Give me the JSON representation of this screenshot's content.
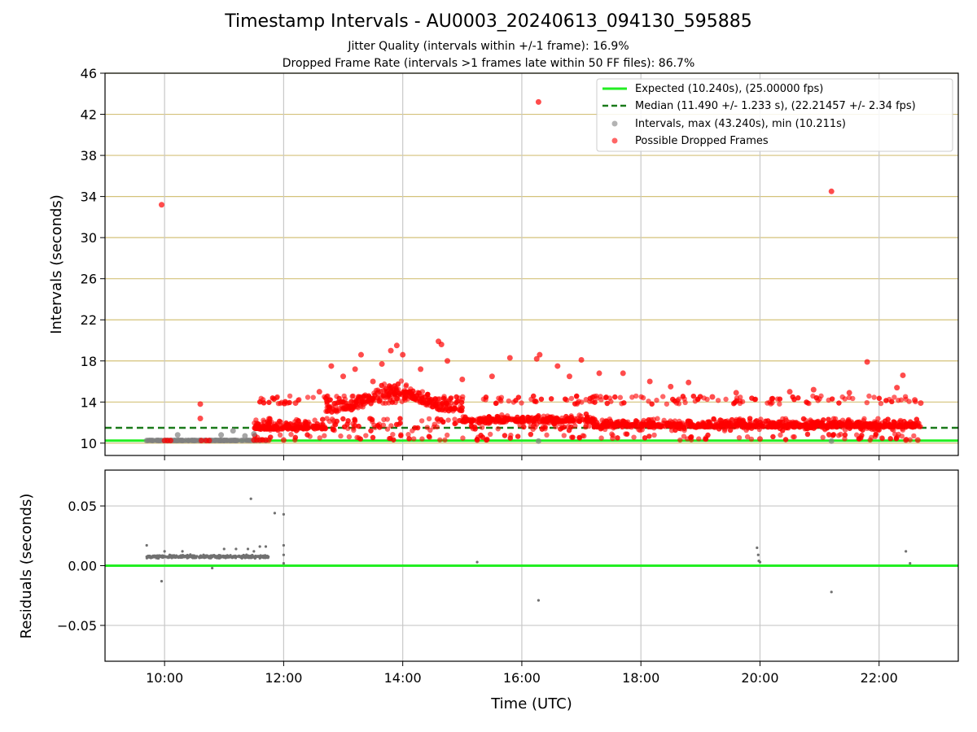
{
  "chart_data": [
    {
      "type": "scatter",
      "title": "Timestamp Intervals - AU0003_20240613_094130_595885",
      "subtitle_lines": [
        "Jitter Quality (intervals within +/-1 frame): 16.9%",
        "Dropped Frame Rate (intervals >1 frames late within 50 FF files): 86.7%"
      ],
      "xlabel": "",
      "ylabel": "Intervals (seconds)",
      "xlim_hours": [
        9.0,
        23.33
      ],
      "ylim": [
        8.8,
        46
      ],
      "yticks": [
        10,
        14,
        18,
        22,
        26,
        30,
        34,
        38,
        42,
        46
      ],
      "xticks_hours": [
        10,
        12,
        14,
        16,
        18,
        20,
        22
      ],
      "x_grid": true,
      "y_grid": true,
      "y_grid_color": "#d4c27a",
      "legend_position": "top-right",
      "lines": [
        {
          "name": "Expected (10.240s), (25.00000 fps)",
          "y": 10.24,
          "color": "#22ee22",
          "style": "solid"
        },
        {
          "name": "Median (11.490 +/- 1.233 s), (22.21457 +/- 2.34 fps)",
          "y": 11.49,
          "color": "#1a7a1a",
          "style": "dashed"
        }
      ],
      "series": [
        {
          "name": "Intervals, max (43.240s), min (10.211s)",
          "color": "#808080",
          "points": [
            [
              9.7,
              10.25
            ],
            [
              9.8,
              10.25
            ],
            [
              9.9,
              10.25
            ],
            [
              10.05,
              10.25
            ],
            [
              10.2,
              10.25
            ],
            [
              10.22,
              10.8
            ],
            [
              10.3,
              10.25
            ],
            [
              10.4,
              10.25
            ],
            [
              10.5,
              10.25
            ],
            [
              10.6,
              10.25
            ],
            [
              10.75,
              10.25
            ],
            [
              10.85,
              10.25
            ],
            [
              10.95,
              10.8
            ],
            [
              11.0,
              10.25
            ],
            [
              11.1,
              10.25
            ],
            [
              11.15,
              11.2
            ],
            [
              11.2,
              10.25
            ],
            [
              11.3,
              10.25
            ],
            [
              11.35,
              10.7
            ],
            [
              11.45,
              10.25
            ],
            [
              11.5,
              10.9
            ],
            [
              11.6,
              10.25
            ],
            [
              11.7,
              10.25
            ],
            [
              16.28,
              10.2
            ],
            [
              21.2,
              10.2
            ]
          ]
        },
        {
          "name": "Possible Dropped Frames",
          "color": "#ff0000",
          "points": [
            [
              9.95,
              33.2
            ],
            [
              10.0,
              10.25
            ],
            [
              10.05,
              10.25
            ],
            [
              10.1,
              10.25
            ],
            [
              10.6,
              13.8
            ],
            [
              10.6,
              12.4
            ],
            [
              10.62,
              10.25
            ],
            [
              10.7,
              10.25
            ],
            [
              10.75,
              10.25
            ],
            [
              11.5,
              10.3
            ],
            [
              11.55,
              10.3
            ],
            [
              11.6,
              10.3
            ],
            [
              11.65,
              10.3
            ],
            [
              11.7,
              10.3
            ],
            [
              11.75,
              10.3
            ],
            [
              12.0,
              10.3
            ],
            [
              12.2,
              13.9
            ],
            [
              12.6,
              15.0
            ],
            [
              12.8,
              17.5
            ],
            [
              13.0,
              16.5
            ],
            [
              13.2,
              17.2
            ],
            [
              13.3,
              18.6
            ],
            [
              13.5,
              16.0
            ],
            [
              13.65,
              17.7
            ],
            [
              13.8,
              19.0
            ],
            [
              13.9,
              19.5
            ],
            [
              14.0,
              18.6
            ],
            [
              14.3,
              17.2
            ],
            [
              14.6,
              19.9
            ],
            [
              14.65,
              19.6
            ],
            [
              14.75,
              18.0
            ],
            [
              15.0,
              16.2
            ],
            [
              15.25,
              10.3
            ],
            [
              15.5,
              16.5
            ],
            [
              15.8,
              18.3
            ],
            [
              16.25,
              18.2
            ],
            [
              16.28,
              43.2
            ],
            [
              16.3,
              18.6
            ],
            [
              16.6,
              17.5
            ],
            [
              16.8,
              16.5
            ],
            [
              17.0,
              18.1
            ],
            [
              17.3,
              16.8
            ],
            [
              17.7,
              16.8
            ],
            [
              18.15,
              16.0
            ],
            [
              18.5,
              15.5
            ],
            [
              18.8,
              15.9
            ],
            [
              19.2,
              14.5
            ],
            [
              19.6,
              14.9
            ],
            [
              20.0,
              10.4
            ],
            [
              20.2,
              14.3
            ],
            [
              20.5,
              15.0
            ],
            [
              20.9,
              15.2
            ],
            [
              21.2,
              34.5
            ],
            [
              21.5,
              14.9
            ],
            [
              21.8,
              17.9
            ],
            [
              22.3,
              15.4
            ],
            [
              22.4,
              16.6
            ],
            [
              22.45,
              10.3
            ],
            [
              22.6,
              14.2
            ],
            [
              22.65,
              10.3
            ],
            [
              22.7,
              13.9
            ]
          ]
        }
      ]
    },
    {
      "type": "scatter",
      "title": "",
      "xlabel": "Time (UTC)",
      "ylabel": "Residuals (seconds)",
      "xlim_hours": [
        9.0,
        23.33
      ],
      "ylim": [
        -0.08,
        0.08
      ],
      "yticks": [
        0.05,
        0.0,
        -0.05
      ],
      "ytick_labels": [
        "0.05",
        "0.00",
        "−0.05"
      ],
      "xticks_hours": [
        10,
        12,
        14,
        16,
        18,
        20,
        22
      ],
      "xtick_labels": [
        "10:00",
        "12:00",
        "14:00",
        "16:00",
        "18:00",
        "20:00",
        "22:00"
      ],
      "grid": true,
      "reference_line": {
        "y": 0.0,
        "color": "#22ee22"
      },
      "series": [
        {
          "name": "",
          "color": "#707070",
          "points": [
            [
              9.7,
              0.017
            ],
            [
              9.72,
              0.008
            ],
            [
              9.95,
              -0.013
            ],
            [
              10.0,
              0.012
            ],
            [
              10.3,
              0.012
            ],
            [
              10.8,
              -0.002
            ],
            [
              11.0,
              0.014
            ],
            [
              11.2,
              0.014
            ],
            [
              11.4,
              0.014
            ],
            [
              11.45,
              0.056
            ],
            [
              11.5,
              0.012
            ],
            [
              11.6,
              0.016
            ],
            [
              11.7,
              0.016
            ],
            [
              11.85,
              0.044
            ],
            [
              12.0,
              0.043
            ],
            [
              12.0,
              0.017
            ],
            [
              12.0,
              0.009
            ],
            [
              12.0,
              0.002
            ],
            [
              15.25,
              0.003
            ],
            [
              16.28,
              -0.029
            ],
            [
              19.95,
              0.015
            ],
            [
              19.97,
              0.009
            ],
            [
              19.98,
              0.004
            ],
            [
              20.0,
              0.003
            ],
            [
              21.2,
              -0.022
            ],
            [
              22.45,
              0.012
            ],
            [
              22.52,
              0.002
            ]
          ]
        }
      ]
    }
  ]
}
